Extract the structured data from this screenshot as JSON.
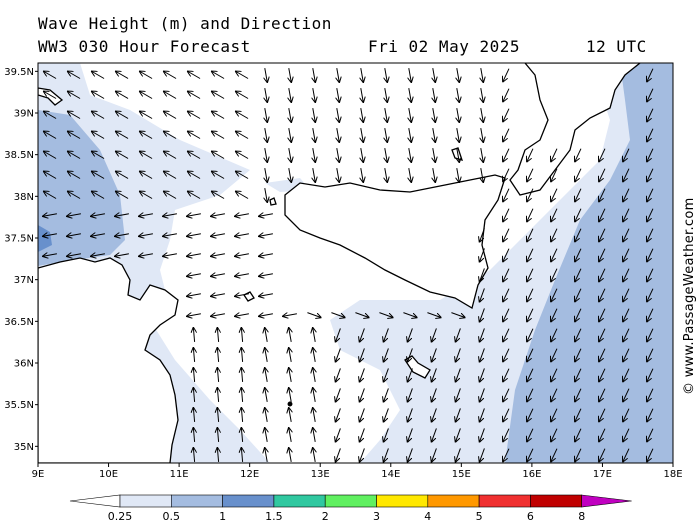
{
  "title": {
    "line1": "Wave Height (m) and Direction",
    "model_run": "WW3 030 Hour Forecast",
    "date": "Fri 02 May 2025",
    "time": "12 UTC"
  },
  "watermark": "© www.PassageWeather.com",
  "map": {
    "lon_range": [
      9,
      18
    ],
    "lat_range": [
      34.8,
      39.6
    ],
    "lon_ticks": [
      "9E",
      "10E",
      "11E",
      "12E",
      "13E",
      "14E",
      "15E",
      "16E",
      "17E",
      "18E"
    ],
    "lat_ticks": [
      "39.5N",
      "39N",
      "38.5N",
      "38N",
      "37.5N",
      "37N",
      "36.5N",
      "36N",
      "35.5N",
      "35N"
    ],
    "land_color": "#ffffff",
    "coast_color": "#000000"
  },
  "legend": {
    "labels": [
      "0.25",
      "0.5",
      "1",
      "1.5",
      "2",
      "3",
      "4",
      "5",
      "6",
      "8"
    ],
    "colors": [
      "#ffffff",
      "#e0e8f6",
      "#a4bce0",
      "#6890cc",
      "#30c8a0",
      "#60f060",
      "#ffe800",
      "#ff9800",
      "#f03030",
      "#c00000",
      "#c000c0"
    ]
  }
}
